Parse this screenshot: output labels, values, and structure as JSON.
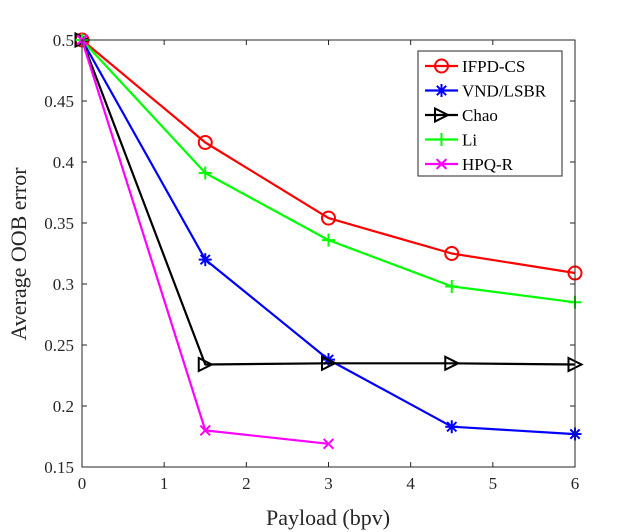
{
  "chart_data": {
    "type": "line",
    "title": "",
    "xlabel": "Payload (bpv)",
    "ylabel": "Average OOB error",
    "xlim": [
      0,
      6
    ],
    "ylim": [
      0.15,
      0.5
    ],
    "xticks": [
      0,
      1,
      2,
      3,
      4,
      5,
      6
    ],
    "xtick_labels": [
      "0",
      "1",
      "2",
      "3",
      "4",
      "5",
      "6"
    ],
    "yticks": [
      0.15,
      0.2,
      0.25,
      0.3,
      0.35,
      0.4,
      0.45,
      0.5
    ],
    "ytick_labels": [
      "0.15",
      "0.2",
      "0.25",
      "0.3",
      "0.35",
      "0.4",
      "0.45",
      "0.5"
    ],
    "grid": false,
    "legend_position": "top-right",
    "series": [
      {
        "name": "IFPD-CS",
        "color": "#ff0000",
        "marker": "circle",
        "x": [
          0,
          1.5,
          3,
          4.5,
          6
        ],
        "y": [
          0.5,
          0.416,
          0.354,
          0.325,
          0.309
        ]
      },
      {
        "name": "VND/LSBR",
        "color": "#0000ff",
        "marker": "asterisk",
        "x": [
          0,
          1.5,
          3,
          4.5,
          6
        ],
        "y": [
          0.5,
          0.32,
          0.238,
          0.183,
          0.177
        ]
      },
      {
        "name": "Chao",
        "color": "#000000",
        "marker": "triangle-right",
        "x": [
          0,
          1.5,
          3,
          4.5,
          6
        ],
        "y": [
          0.5,
          0.234,
          0.235,
          0.235,
          0.234
        ]
      },
      {
        "name": "Li",
        "color": "#00ff00",
        "marker": "plus",
        "x": [
          0,
          1.5,
          3,
          4.5,
          6
        ],
        "y": [
          0.5,
          0.391,
          0.336,
          0.298,
          0.285
        ]
      },
      {
        "name": "HPQ-R",
        "color": "#ff00ff",
        "marker": "x",
        "x": [
          0,
          1.5,
          3
        ],
        "y": [
          0.5,
          0.18,
          0.169
        ]
      }
    ]
  }
}
